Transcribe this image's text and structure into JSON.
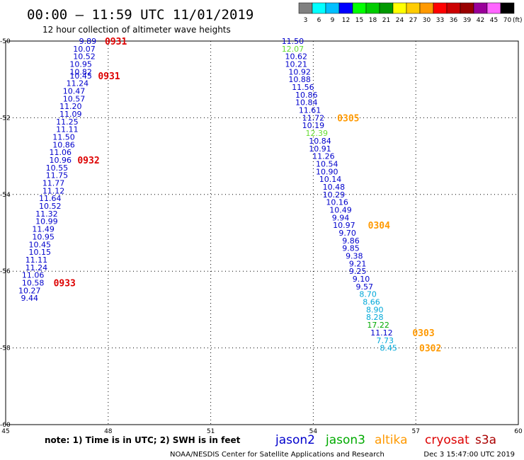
{
  "header": {
    "title": "00:00 – 11:59 UTC 11/01/2019",
    "subtitle": "12 hour collection of altimeter wave heights"
  },
  "legend_scale": {
    "labels": [
      "3",
      "6",
      "9",
      "12",
      "15",
      "18",
      "21",
      "24",
      "27",
      "30",
      "33",
      "36",
      "39",
      "42",
      "45",
      "70"
    ],
    "unit": "(ft)",
    "colors": [
      "#808080",
      "#00ffff",
      "#00bfff",
      "#0000ff",
      "#00ff00",
      "#00cc00",
      "#009900",
      "#ffff00",
      "#ffcc00",
      "#ff9900",
      "#ff0000",
      "#cc0000",
      "#990000",
      "#990099",
      "#ff66ff",
      "#000000"
    ]
  },
  "footer": {
    "note": "note: 1) Time is in UTC; 2) SWH is in feet",
    "credit": "NOAA/NESDIS Center for Satellite Applications and Research",
    "timestamp": "Dec  3 15:47:00 UTC 2019"
  },
  "satellites": [
    {
      "name": "jason2",
      "color": "#0000cc"
    },
    {
      "name": "jason3",
      "color": "#00aa00"
    },
    {
      "name": "altika",
      "color": "#ff9900"
    },
    {
      "name": "cryosat",
      "color": "#dd0000"
    },
    {
      "name": "s3a",
      "color": "#aa0000"
    }
  ],
  "chart_data": {
    "type": "scatter",
    "xlim": [
      45,
      60
    ],
    "ylim": [
      -60,
      -50
    ],
    "x_ticks": [
      "45",
      "48",
      "51",
      "54",
      "57",
      "60"
    ],
    "y_ticks": [
      "-50",
      "-52",
      "-54",
      "-56",
      "-58",
      "-60"
    ],
    "grid": true,
    "colors": {
      "blue": "#0000cc",
      "green": "#66dd33",
      "cyan": "#00a8d8",
      "darkgreen": "#00aa00"
    },
    "passes": [
      {
        "color": "#0000cc",
        "points": [
          [
            47.4,
            -50.0,
            "9.89"
          ],
          [
            47.3,
            -50.2,
            "10.07"
          ],
          [
            47.3,
            -50.4,
            "10.52"
          ],
          [
            47.2,
            -50.6,
            "10.95"
          ],
          [
            47.2,
            -50.8,
            "10.82"
          ],
          [
            47.2,
            -50.9,
            "10.45"
          ],
          [
            47.1,
            -51.1,
            "11.24"
          ],
          [
            47.0,
            -51.3,
            "10.47"
          ],
          [
            47.0,
            -51.5,
            "10.57"
          ],
          [
            46.9,
            -51.7,
            "11.20"
          ],
          [
            46.9,
            -51.9,
            "11.09"
          ],
          [
            46.8,
            -52.1,
            "11.25"
          ],
          [
            46.8,
            -52.3,
            "11.11"
          ],
          [
            46.7,
            -52.5,
            "11.50"
          ],
          [
            46.7,
            -52.7,
            "10.86"
          ],
          [
            46.6,
            -52.9,
            "11.06"
          ],
          [
            46.6,
            -53.1,
            "10.96"
          ],
          [
            46.5,
            -53.3,
            "10.55"
          ],
          [
            46.5,
            -53.5,
            "11.75"
          ],
          [
            46.4,
            -53.7,
            "11.77"
          ],
          [
            46.4,
            -53.9,
            "11.12"
          ],
          [
            46.3,
            -54.1,
            "11.64"
          ],
          [
            46.3,
            -54.3,
            "10.52"
          ],
          [
            46.2,
            -54.5,
            "11.32"
          ],
          [
            46.2,
            -54.7,
            "10.99"
          ],
          [
            46.1,
            -54.9,
            "11.49"
          ],
          [
            46.1,
            -55.1,
            "10.95"
          ],
          [
            46.0,
            -55.3,
            "10.45"
          ],
          [
            46.0,
            -55.5,
            "10.15"
          ],
          [
            45.9,
            -55.7,
            "11.11"
          ],
          [
            45.9,
            -55.9,
            "11.24"
          ],
          [
            45.8,
            -56.1,
            "11.06"
          ],
          [
            45.8,
            -56.3,
            "10.58"
          ],
          [
            45.7,
            -56.5,
            "10.27"
          ],
          [
            45.7,
            -56.7,
            "9.44"
          ]
        ]
      },
      {
        "color": "#0000cc",
        "points": [
          [
            53.4,
            -50.0,
            "11.50"
          ],
          [
            53.4,
            -50.2,
            "12.07"
          ],
          [
            53.5,
            -50.4,
            "10.62"
          ],
          [
            53.5,
            -50.6,
            "10.21"
          ],
          [
            53.6,
            -50.8,
            "10.92"
          ],
          [
            53.6,
            -51.0,
            "10.88"
          ],
          [
            53.7,
            -51.2,
            "11.56"
          ],
          [
            53.8,
            -51.4,
            "10.86"
          ],
          [
            53.8,
            -51.6,
            "10.84"
          ],
          [
            53.9,
            -51.8,
            "11.61"
          ],
          [
            54.0,
            -52.0,
            "11.72"
          ],
          [
            54.0,
            -52.2,
            "10.19"
          ],
          [
            54.1,
            -52.4,
            "12.39"
          ],
          [
            54.2,
            -52.6,
            "10.84"
          ],
          [
            54.2,
            -52.8,
            "10.91"
          ],
          [
            54.3,
            -53.0,
            "11.26"
          ],
          [
            54.4,
            -53.2,
            "10.54"
          ],
          [
            54.4,
            -53.4,
            "10.90"
          ],
          [
            54.5,
            -53.6,
            "10.14"
          ],
          [
            54.6,
            -53.8,
            "10.48"
          ],
          [
            54.6,
            -54.0,
            "10.29"
          ],
          [
            54.7,
            -54.2,
            "10.16"
          ],
          [
            54.8,
            -54.4,
            "10.49"
          ],
          [
            54.8,
            -54.6,
            "9.94"
          ],
          [
            54.9,
            -54.8,
            "10.97"
          ],
          [
            55.0,
            -55.0,
            "9.70"
          ],
          [
            55.1,
            -55.2,
            "9.86"
          ],
          [
            55.1,
            -55.4,
            "9.85"
          ],
          [
            55.2,
            -55.6,
            "9.38"
          ],
          [
            55.3,
            -55.8,
            "9.21"
          ],
          [
            55.3,
            -56.0,
            "9.25"
          ],
          [
            55.4,
            -56.2,
            "9.10"
          ],
          [
            55.5,
            -56.4,
            "9.57"
          ],
          [
            55.6,
            -56.6,
            "8.70"
          ],
          [
            55.7,
            -56.8,
            "8.66"
          ],
          [
            55.8,
            -57.0,
            "8.90"
          ],
          [
            55.8,
            -57.2,
            "8.28"
          ],
          [
            55.9,
            -57.4,
            "17.22"
          ],
          [
            56.0,
            -57.6,
            "11.12"
          ],
          [
            56.1,
            -57.8,
            "7.73"
          ],
          [
            56.2,
            -58.0,
            "8.45"
          ]
        ]
      }
    ],
    "point_colors": [
      "#0000cc",
      "#66dd33",
      "#0000cc",
      "#0000cc",
      "#0000cc",
      "#0000cc",
      "#0000cc",
      "#0000cc",
      "#0000cc",
      "#0000cc",
      "#0000cc",
      "#0000cc",
      "#66dd33",
      "#0000cc",
      "#0000cc",
      "#0000cc",
      "#0000cc",
      "#0000cc",
      "#0000cc",
      "#0000cc",
      "#0000cc",
      "#0000cc",
      "#0000cc",
      "#0000cc",
      "#0000cc",
      "#0000cc",
      "#0000cc",
      "#0000cc",
      "#0000cc",
      "#0000cc",
      "#0000cc",
      "#0000cc",
      "#0000cc",
      "#00a8d8",
      "#00a8d8",
      "#00a8d8",
      "#00a8d8",
      "#00aa00",
      "#0000cc",
      "#00a8d8",
      "#00a8d8"
    ],
    "time_labels": [
      {
        "text": "0931",
        "color": "#dd0000",
        "x": 47.9,
        "y": -50.0
      },
      {
        "text": "0931",
        "color": "#dd0000",
        "x": 47.7,
        "y": -50.9
      },
      {
        "text": "0932",
        "color": "#dd0000",
        "x": 47.1,
        "y": -53.1
      },
      {
        "text": "0933",
        "color": "#dd0000",
        "x": 46.4,
        "y": -56.3
      },
      {
        "text": "0305",
        "color": "#ff9900",
        "x": 54.7,
        "y": -52.0
      },
      {
        "text": "0304",
        "color": "#ff9900",
        "x": 55.6,
        "y": -54.8
      },
      {
        "text": "0303",
        "color": "#ff9900",
        "x": 56.9,
        "y": -57.6
      },
      {
        "text": "0302",
        "color": "#ff9900",
        "x": 57.1,
        "y": -58.0
      }
    ]
  }
}
